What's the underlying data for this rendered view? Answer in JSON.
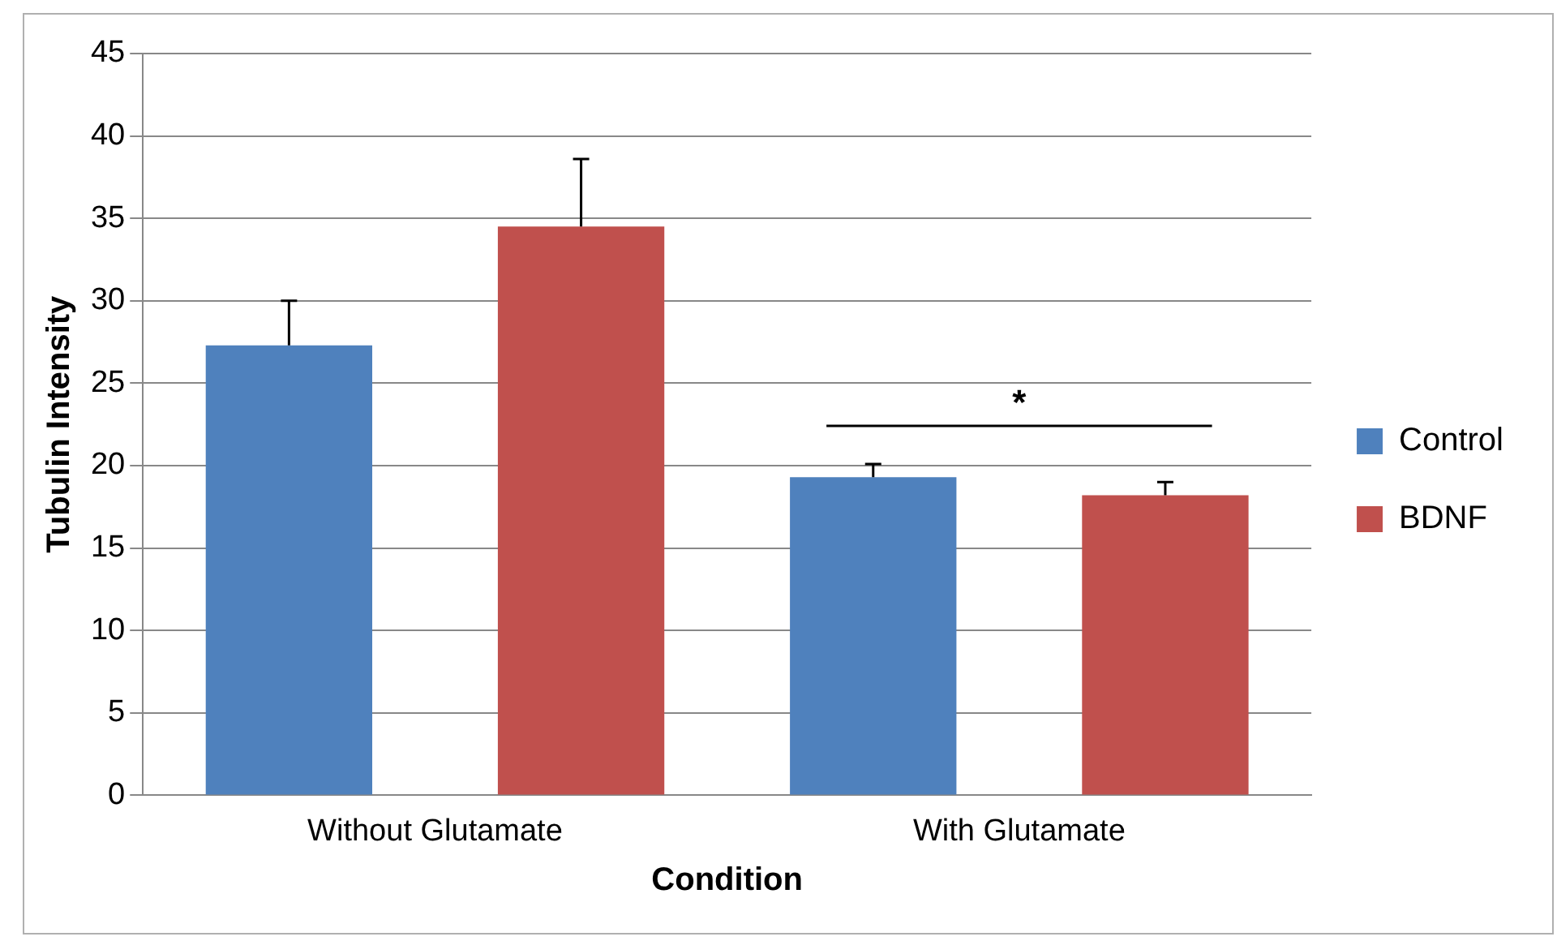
{
  "chart_data": {
    "type": "bar",
    "xlabel": "Condition",
    "ylabel": "Tubulin Intensity",
    "categories": [
      "Without Glutamate",
      "With Glutamate"
    ],
    "series": [
      {
        "name": "Control",
        "color": "#4f81bd",
        "values": [
          27.3,
          19.3
        ],
        "errors": [
          [
            27.3,
            30.0
          ],
          [
            19.3,
            20.1
          ]
        ]
      },
      {
        "name": "BDNF",
        "color": "#c0504d",
        "values": [
          34.5,
          18.2
        ],
        "errors": [
          [
            34.5,
            38.6
          ],
          [
            18.2,
            19.0
          ]
        ]
      }
    ],
    "ylim": [
      0,
      45
    ],
    "yticks": [
      0,
      5,
      10,
      15,
      20,
      25,
      30,
      35,
      40,
      45
    ],
    "grid": "y",
    "legend": "right",
    "annotations": [
      "*"
    ]
  }
}
